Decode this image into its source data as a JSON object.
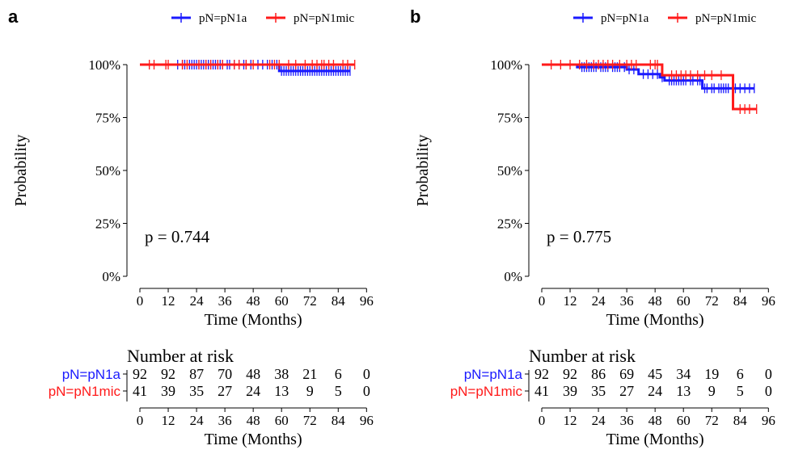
{
  "colors": {
    "pN1a": "#1a1aff",
    "pN1mic": "#ff1a1a",
    "axis": "#000000"
  },
  "chart_data": [
    {
      "panel_label": "a",
      "type": "line",
      "chart_kind": "kaplan-meier",
      "title": "",
      "xlabel": "Time (Months)",
      "ylabel": "Probability",
      "xlim": [
        0,
        96
      ],
      "ylim": [
        0,
        1
      ],
      "xticks": [
        0,
        12,
        24,
        36,
        48,
        60,
        72,
        84,
        96
      ],
      "xtick_labels": [
        "0",
        "12",
        "24",
        "36",
        "48",
        "60",
        "72",
        "84",
        "96"
      ],
      "ytick_labels": [
        "0%",
        "25%",
        "50%",
        "75%",
        "100%"
      ],
      "legend_position": "top",
      "pvalue": "p = 0.744",
      "series": [
        {
          "name": "pN=pN1a",
          "color": "#1a1aff",
          "steps": [
            [
              0,
              1.0
            ],
            [
              59,
              0.97
            ],
            [
              89,
              0.97
            ]
          ],
          "censor_times": [
            16,
            18,
            19,
            21,
            22,
            23,
            24,
            25,
            26,
            27,
            28,
            29,
            30,
            31,
            32,
            33,
            34,
            35,
            37,
            38,
            40,
            42,
            44,
            45,
            47,
            50,
            52,
            54,
            56,
            58,
            60,
            61,
            62,
            63,
            64,
            65,
            66,
            67,
            68,
            69,
            70,
            71,
            72,
            73,
            74,
            75,
            76,
            77,
            78,
            79,
            80,
            81,
            82,
            83,
            84,
            85,
            86,
            87,
            88,
            89
          ]
        },
        {
          "name": "pN=pN1mic",
          "color": "#ff1a1a",
          "steps": [
            [
              0,
              1.0
            ],
            [
              91,
              1.0
            ]
          ],
          "censor_times": [
            4,
            6,
            11,
            12,
            18,
            20,
            25,
            28,
            30,
            33,
            35,
            40,
            42,
            45,
            48,
            55,
            57,
            59,
            63,
            66,
            70,
            73,
            75,
            77,
            78,
            80,
            82,
            86,
            88,
            91
          ]
        }
      ],
      "risk_table": {
        "title": "Number at risk",
        "xlabel": "Time (Months)",
        "rows": [
          {
            "name": "pN=pN1a",
            "color": "#1a1aff",
            "values": [
              "92",
              "92",
              "87",
              "70",
              "48",
              "38",
              "21",
              "6",
              "0"
            ]
          },
          {
            "name": "pN=pN1mic",
            "color": "#ff1a1a",
            "values": [
              "41",
              "39",
              "35",
              "27",
              "24",
              "13",
              "9",
              "5",
              "0"
            ]
          }
        ]
      }
    },
    {
      "panel_label": "b",
      "type": "line",
      "chart_kind": "kaplan-meier",
      "title": "",
      "xlabel": "Time (Months)",
      "ylabel": "Probability",
      "xlim": [
        0,
        96
      ],
      "ylim": [
        0,
        1
      ],
      "xticks": [
        0,
        12,
        24,
        36,
        48,
        60,
        72,
        84,
        96
      ],
      "xtick_labels": [
        "0",
        "12",
        "24",
        "36",
        "48",
        "60",
        "72",
        "84",
        "96"
      ],
      "ytick_labels": [
        "0%",
        "25%",
        "50%",
        "75%",
        "100%"
      ],
      "legend_position": "top",
      "pvalue": "p = 0.775",
      "series": [
        {
          "name": "pN=pN1a",
          "color": "#1a1aff",
          "steps": [
            [
              0,
              1.0
            ],
            [
              15,
              0.988
            ],
            [
              36,
              0.977
            ],
            [
              41,
              0.955
            ],
            [
              50,
              0.94
            ],
            [
              52,
              0.925
            ],
            [
              68,
              0.888
            ],
            [
              90,
              0.888
            ]
          ],
          "censor_times": [
            17,
            18,
            19,
            20,
            21,
            22,
            23,
            25,
            26,
            27,
            28,
            30,
            31,
            32,
            33,
            35,
            37,
            39,
            43,
            45,
            47,
            49,
            51,
            54,
            55,
            56,
            57,
            58,
            59,
            60,
            61,
            63,
            64,
            66,
            67,
            69,
            70,
            72,
            73,
            75,
            76,
            77,
            78,
            79,
            82,
            84,
            86,
            88,
            90
          ]
        },
        {
          "name": "pN=pN1mic",
          "color": "#ff1a1a",
          "steps": [
            [
              0,
              1.0
            ],
            [
              50,
              1.0
            ],
            [
              51,
              0.95
            ],
            [
              81,
              0.95
            ],
            [
              81,
              0.79
            ],
            [
              91,
              0.79
            ]
          ],
          "censor_times": [
            4,
            8,
            12,
            16,
            19,
            22,
            24,
            26,
            28,
            30,
            33,
            36,
            38,
            40,
            46,
            48,
            49,
            55,
            57,
            59,
            61,
            63,
            66,
            69,
            72,
            76,
            84,
            86,
            88,
            91
          ]
        }
      ],
      "risk_table": {
        "title": "Number at risk",
        "xlabel": "Time (Months)",
        "rows": [
          {
            "name": "pN=pN1a",
            "color": "#1a1aff",
            "values": [
              "92",
              "92",
              "86",
              "69",
              "45",
              "34",
              "19",
              "6",
              "0"
            ]
          },
          {
            "name": "pN=pN1mic",
            "color": "#ff1a1a",
            "values": [
              "41",
              "39",
              "35",
              "27",
              "24",
              "13",
              "9",
              "5",
              "0"
            ]
          }
        ]
      }
    }
  ]
}
